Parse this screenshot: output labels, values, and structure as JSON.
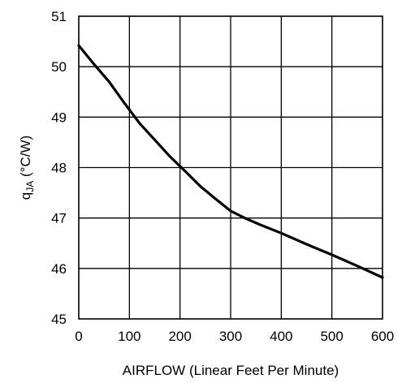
{
  "chart_data": {
    "type": "line",
    "title": "",
    "xlabel": "AIRFLOW (Linear Feet Per Minute)",
    "ylabel": {
      "prefix": "q",
      "subscript": "JA",
      "suffix": " (°C/W)"
    },
    "xlim": [
      0,
      600
    ],
    "ylim": [
      45,
      51
    ],
    "xticks": [
      0,
      100,
      200,
      300,
      400,
      500,
      600
    ],
    "yticks": [
      45,
      46,
      47,
      48,
      49,
      50,
      51
    ],
    "grid": true,
    "legend": "none",
    "series": [
      {
        "color": "#000000",
        "x": [
          0,
          30,
          60,
          90,
          120,
          150,
          180,
          210,
          240,
          270,
          300,
          330,
          360,
          400,
          450,
          500,
          550,
          600
        ],
        "y": [
          50.42,
          50.05,
          49.7,
          49.28,
          48.88,
          48.55,
          48.22,
          47.93,
          47.63,
          47.38,
          47.14,
          46.99,
          46.86,
          46.7,
          46.48,
          46.27,
          46.05,
          45.82
        ]
      }
    ]
  }
}
